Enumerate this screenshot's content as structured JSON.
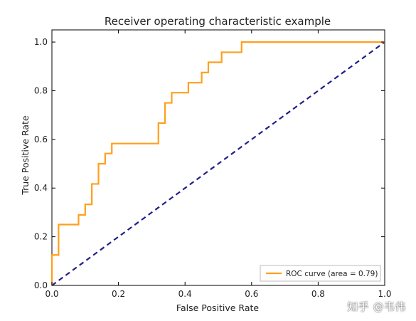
{
  "chart_data": {
    "type": "line",
    "title": "Receiver operating characteristic example",
    "xlabel": "False Positive Rate",
    "ylabel": "True Positive Rate",
    "xlim": [
      0.0,
      1.0
    ],
    "ylim": [
      0.0,
      1.05
    ],
    "xticks": [
      "0.0",
      "0.2",
      "0.4",
      "0.6",
      "0.8",
      "1.0"
    ],
    "yticks": [
      "0.0",
      "0.2",
      "0.4",
      "0.6",
      "0.8",
      "1.0"
    ],
    "grid": false,
    "legend_position": "lower-right",
    "series": [
      {
        "name": "ROC curve (area = 0.79)",
        "color": "#ff9f1a",
        "style": "solid",
        "x": [
          0.0,
          0.0,
          0.02,
          0.02,
          0.08,
          0.08,
          0.1,
          0.1,
          0.12,
          0.12,
          0.14,
          0.14,
          0.16,
          0.16,
          0.18,
          0.18,
          0.32,
          0.32,
          0.34,
          0.34,
          0.36,
          0.36,
          0.41,
          0.41,
          0.45,
          0.45,
          0.47,
          0.47,
          0.51,
          0.51,
          0.57,
          0.57,
          1.0
        ],
        "y": [
          0.0,
          0.125,
          0.125,
          0.25,
          0.25,
          0.29,
          0.29,
          0.333,
          0.333,
          0.417,
          0.417,
          0.5,
          0.5,
          0.542,
          0.542,
          0.583,
          0.583,
          0.667,
          0.667,
          0.75,
          0.75,
          0.792,
          0.792,
          0.833,
          0.833,
          0.875,
          0.875,
          0.917,
          0.917,
          0.958,
          0.958,
          1.0,
          1.0
        ]
      },
      {
        "name": "",
        "color": "#1f1f8a",
        "style": "dashed",
        "x": [
          0.0,
          1.0
        ],
        "y": [
          0.0,
          1.0
        ]
      }
    ]
  },
  "watermark": "知乎 @韦伟"
}
